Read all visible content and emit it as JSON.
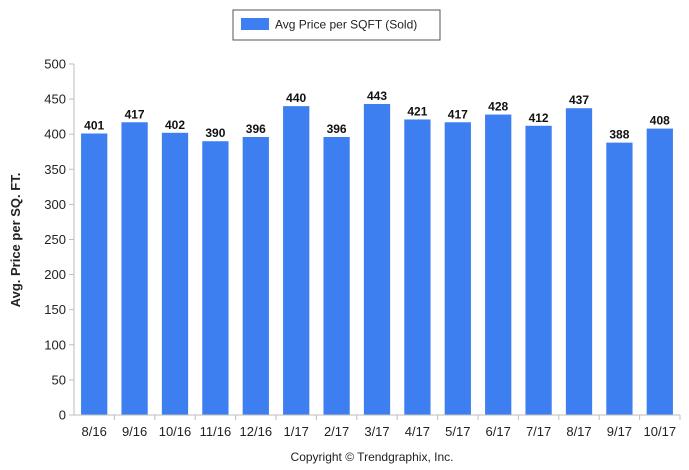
{
  "chart_data": {
    "type": "bar",
    "categories": [
      "8/16",
      "9/16",
      "10/16",
      "11/16",
      "12/16",
      "1/17",
      "2/17",
      "3/17",
      "4/17",
      "5/17",
      "6/17",
      "7/17",
      "8/17",
      "9/17",
      "10/17"
    ],
    "series": [
      {
        "name": "Avg Price per SQFT (Sold)",
        "values": [
          401,
          417,
          402,
          390,
          396,
          440,
          396,
          443,
          421,
          417,
          428,
          412,
          437,
          388,
          408
        ]
      }
    ],
    "data_labels": [
      "401",
      "417",
      "402",
      "390",
      "396",
      "440",
      "396",
      "443",
      "421",
      "417",
      "428",
      "412",
      "437",
      "388",
      "408"
    ],
    "ylabel": "Avg. Price per SQ. FT.",
    "xlabel": "",
    "ylim": [
      0,
      500
    ],
    "yticks": [
      0,
      50,
      100,
      150,
      200,
      250,
      300,
      350,
      400,
      450,
      500
    ],
    "grid": false,
    "legend_position": "top-center"
  },
  "colors": {
    "bar": "#3d7ff0",
    "axis": "#bdbdbd"
  },
  "footer": {
    "copyright": "Copyright © Trendgraphix, Inc."
  }
}
